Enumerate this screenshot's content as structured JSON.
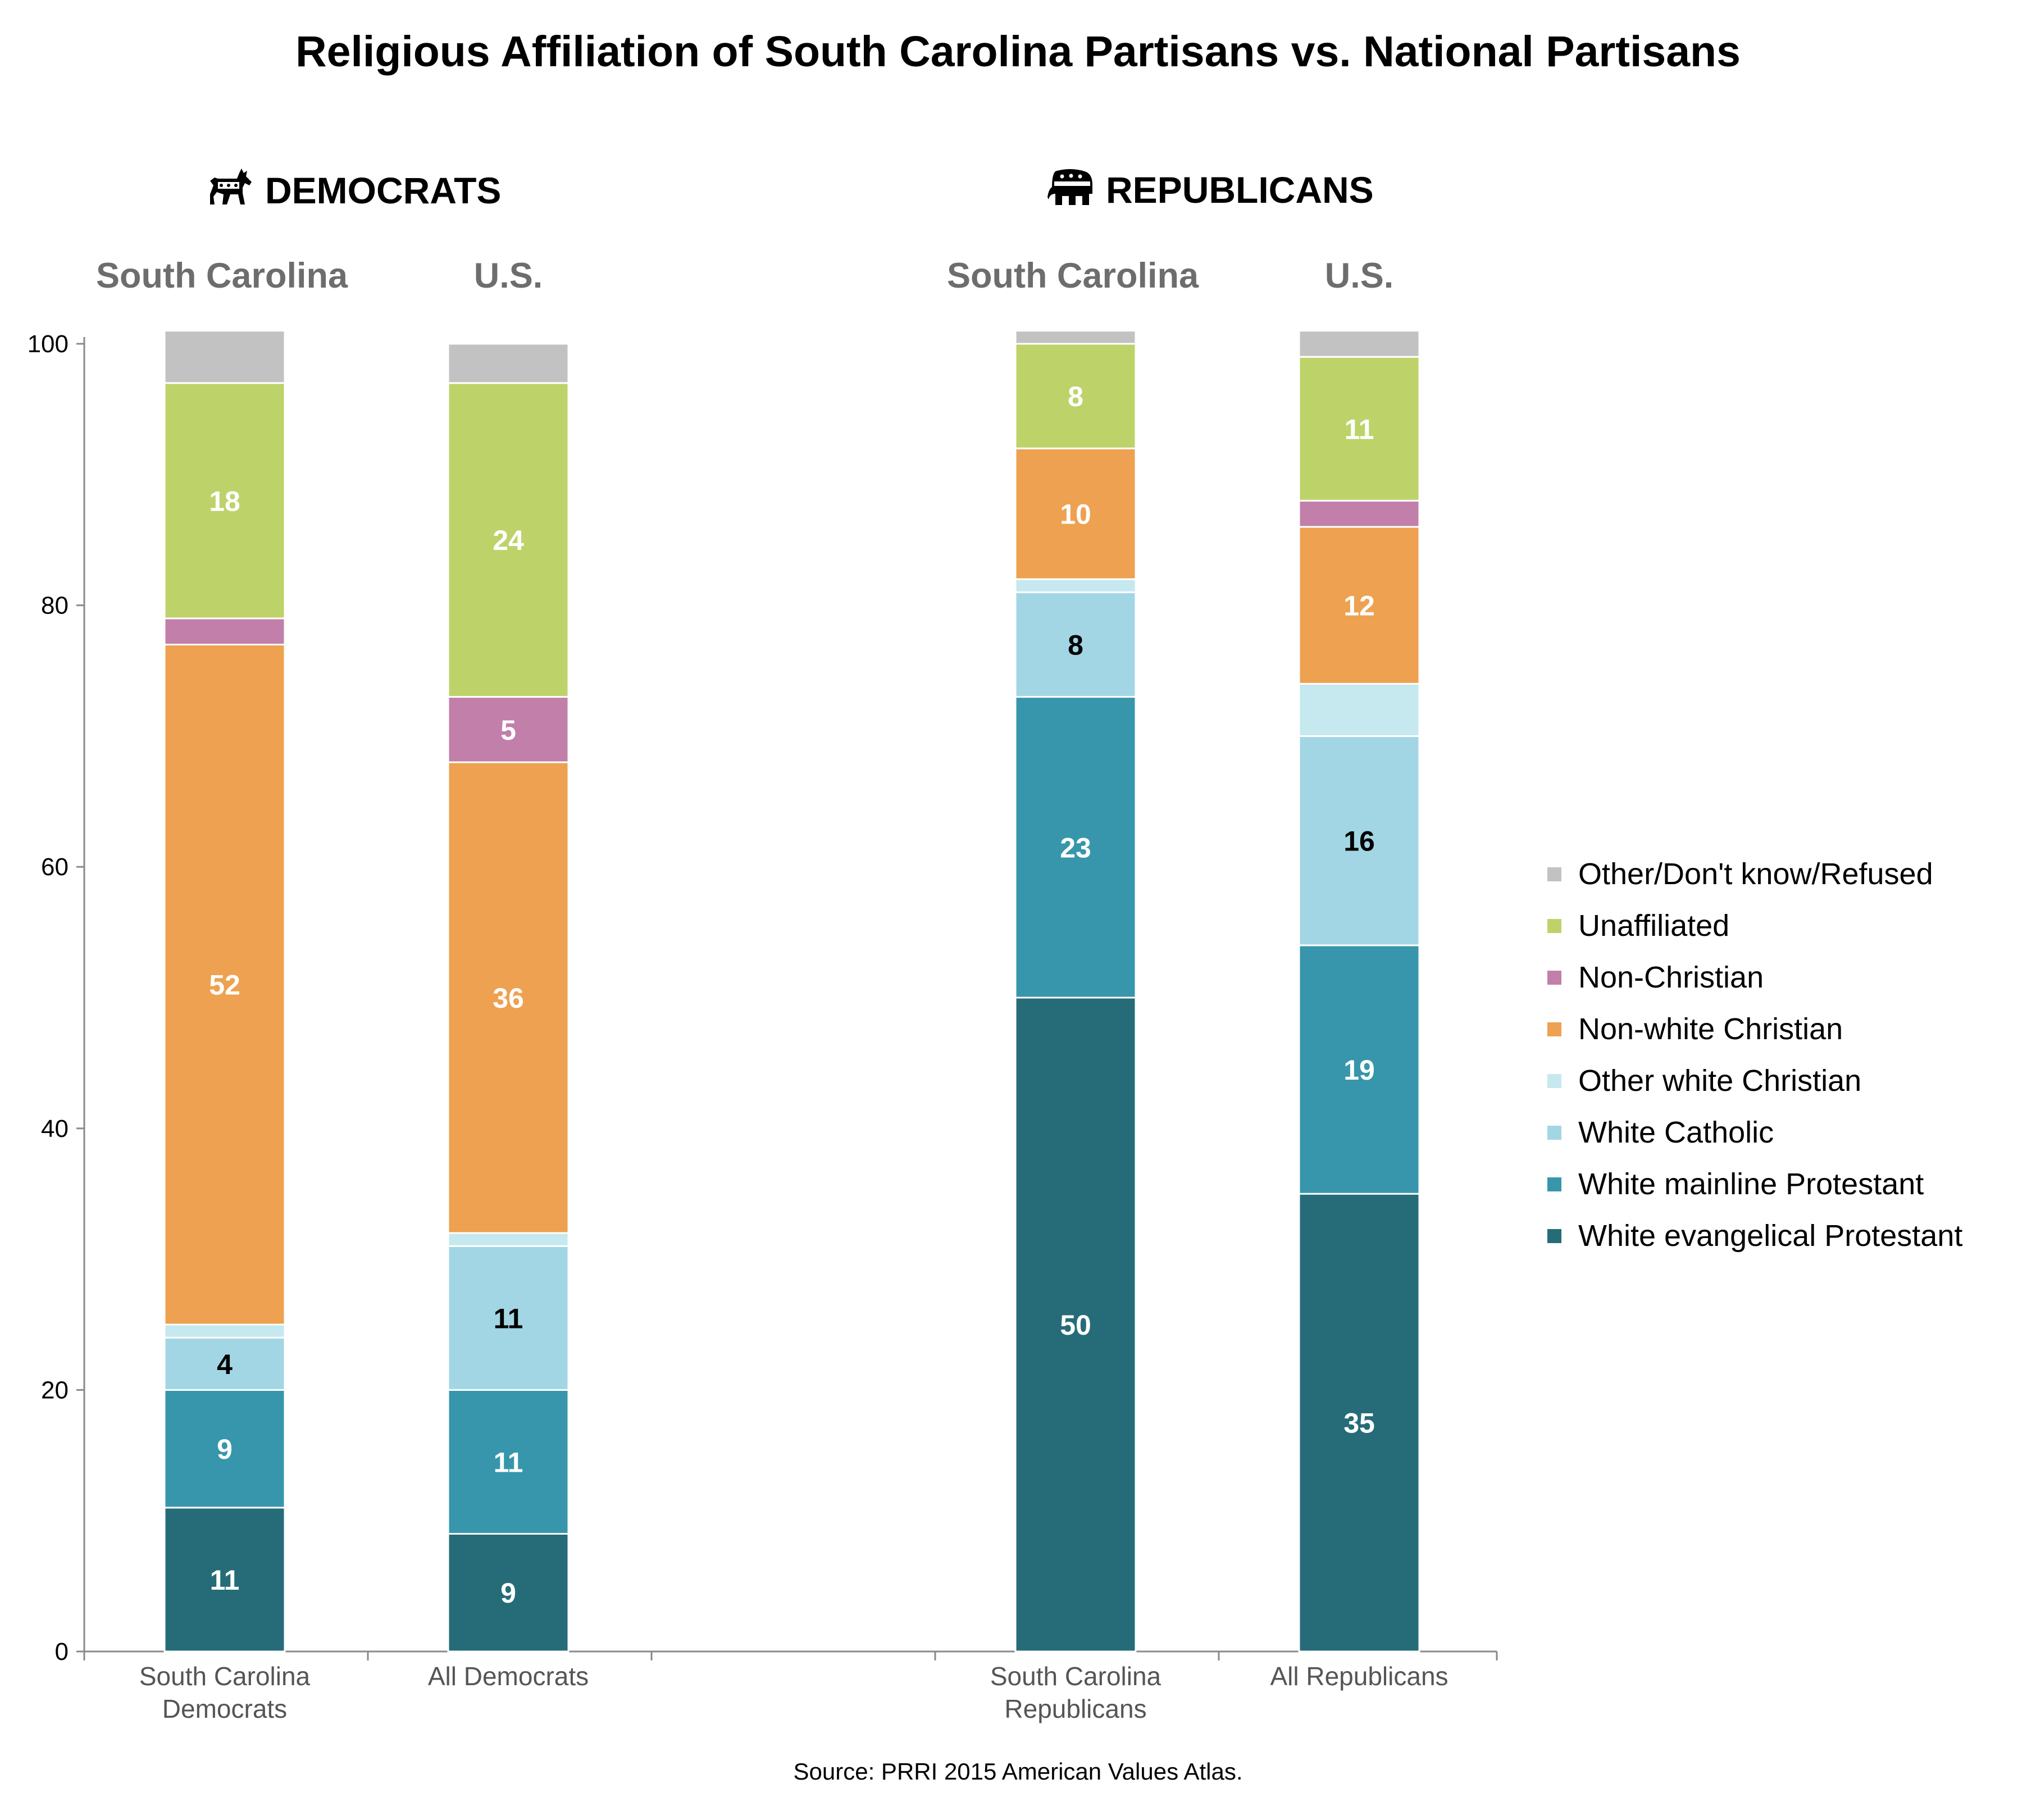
{
  "title": "Religious Affiliation of South Carolina Partisans vs. National Partisans",
  "groups": [
    {
      "label": "DEMOCRATS",
      "icon": "donkey-icon"
    },
    {
      "label": "REPUBLICANS",
      "icon": "elephant-icon"
    }
  ],
  "column_headers": [
    "South Carolina",
    "U.S.",
    "South Carolina",
    "U.S."
  ],
  "source": "Source: PRRI 2015 American Values Atlas.",
  "colors": {
    "White evangelical Protestant": "#256c78",
    "White mainline Protestant": "#3796ab",
    "White Catholic": "#a3d6e4",
    "Other white Christian": "#c6e8ef",
    "Non-white Christian": "#eea150",
    "Non-Christian": "#c17faa",
    "Unaffiliated": "#bdd36a",
    "Other/Don't know/Refused": "#c2c2c2"
  },
  "label_colors": {
    "White Catholic": "#000000",
    "default": "#ffffff"
  },
  "chart_data": {
    "type": "bar",
    "stacked": true,
    "title": "Religious Affiliation of South Carolina Partisans vs. National Partisans",
    "categories": [
      [
        "South Carolina",
        "Democrats"
      ],
      [
        "All Democrats"
      ],
      [
        "South Carolina",
        "Republicans"
      ],
      [
        "All Republicans"
      ]
    ],
    "xlabel": "",
    "ylabel": "",
    "ylim": [
      0,
      100
    ],
    "yticks": [
      0,
      20,
      40,
      60,
      80,
      100
    ],
    "grid": false,
    "legend_position": "right",
    "series": [
      {
        "name": "White evangelical Protestant",
        "values": [
          11,
          9,
          50,
          35
        ],
        "labels": [
          "11",
          "9",
          "50",
          "35"
        ]
      },
      {
        "name": "White mainline Protestant",
        "values": [
          9,
          11,
          23,
          19
        ],
        "labels": [
          "9",
          "11",
          "23",
          "19"
        ]
      },
      {
        "name": "White Catholic",
        "values": [
          4,
          11,
          8,
          16
        ],
        "labels": [
          "4",
          "11",
          "8",
          "16"
        ]
      },
      {
        "name": "Other white Christian",
        "values": [
          1,
          1,
          1,
          4
        ],
        "labels": [
          "",
          "",
          "",
          ""
        ]
      },
      {
        "name": "Non-white Christian",
        "values": [
          52,
          36,
          10,
          12
        ],
        "labels": [
          "52",
          "36",
          "10",
          "12"
        ]
      },
      {
        "name": "Non-Christian",
        "values": [
          2,
          5,
          0,
          2
        ],
        "labels": [
          "",
          "5",
          "",
          ""
        ]
      },
      {
        "name": "Unaffiliated",
        "values": [
          18,
          24,
          8,
          11
        ],
        "labels": [
          "18",
          "24",
          "8",
          "11"
        ]
      },
      {
        "name": "Other/Don't know/Refused",
        "values": [
          4,
          3,
          1,
          2
        ],
        "labels": [
          "",
          "",
          "",
          ""
        ]
      }
    ]
  }
}
